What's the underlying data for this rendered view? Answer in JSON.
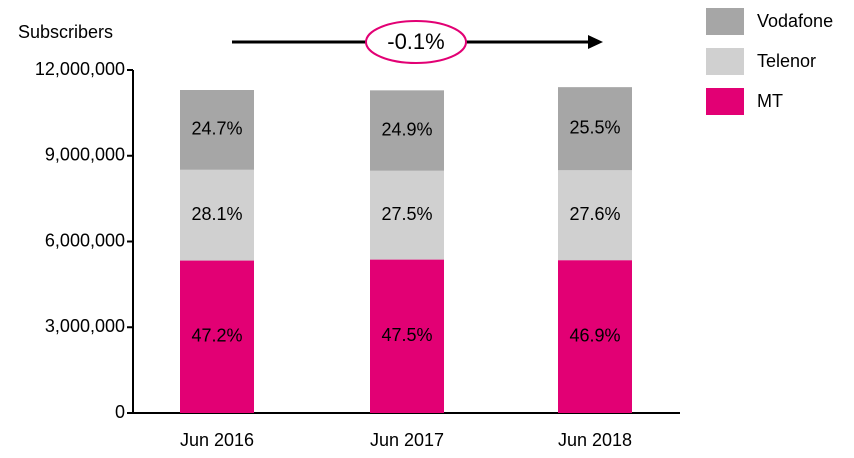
{
  "chart_data": {
    "type": "bar",
    "stacked": true,
    "y_axis_label": "Subscribers",
    "annotation": "-0.1%",
    "categories": [
      "Jun 2016",
      "Jun 2017",
      "Jun 2018"
    ],
    "series": [
      {
        "name": "MT",
        "color": "#e20074",
        "values": [
          5333600,
          5367500,
          5346600
        ],
        "value_labels": [
          "47.2%",
          "47.5%",
          "46.9%"
        ]
      },
      {
        "name": "Telenor",
        "color": "#d0d0d0",
        "values": [
          3175300,
          3107500,
          3146400
        ],
        "value_labels": [
          "28.1%",
          "27.5%",
          "27.6%"
        ]
      },
      {
        "name": "Vodafone",
        "color": "#a6a6a6",
        "values": [
          2791100,
          2813700,
          2907000
        ],
        "value_labels": [
          "24.7%",
          "24.9%",
          "25.5%"
        ]
      }
    ],
    "ylim": [
      0,
      12000000
    ],
    "yticks": [
      0,
      {
        "value": 3000000,
        "label": "3,000,000"
      },
      {
        "value": 6000000,
        "label": "6,000,000"
      },
      {
        "value": 9000000,
        "label": "9,000,000"
      },
      {
        "value": 12000000,
        "label": "12,000,000"
      }
    ],
    "legend": "top-right",
    "grid": false
  }
}
